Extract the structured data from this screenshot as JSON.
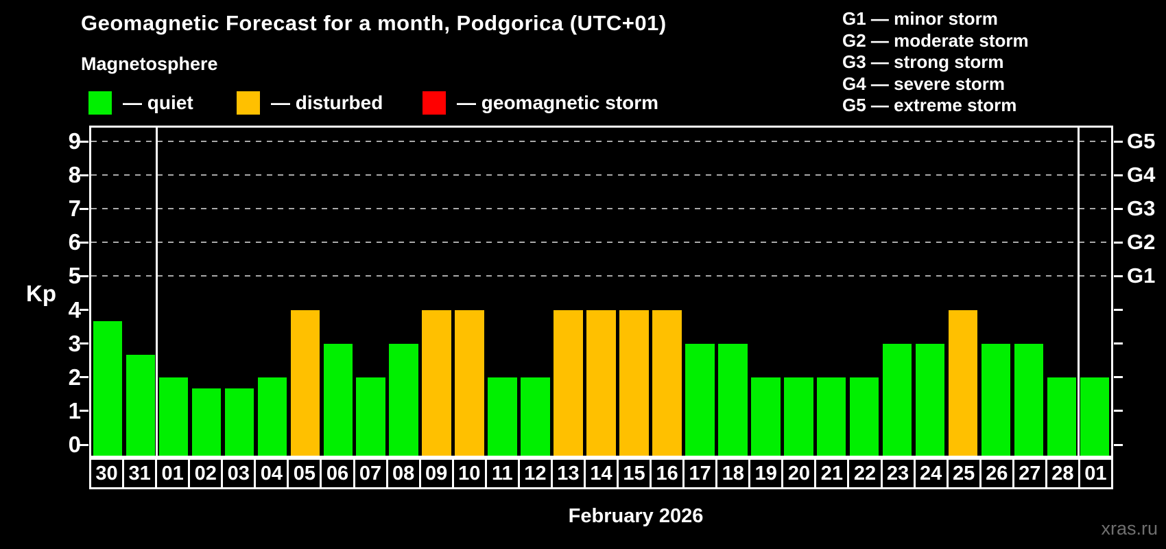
{
  "title": "Geomagnetic Forecast for a month, Podgorica (UTC+01)",
  "subtitle": "Magnetosphere",
  "legend": {
    "items": [
      {
        "name": "quiet",
        "label": "— quiet",
        "color": "#00f000"
      },
      {
        "name": "disturbed",
        "label": "— disturbed",
        "color": "#ffc000"
      },
      {
        "name": "storm",
        "label": "— geomagnetic storm",
        "color": "#ff0000"
      }
    ]
  },
  "g_legend": [
    "G1 — minor storm",
    "G2 — moderate storm",
    "G3 — strong storm",
    "G4 — severe storm",
    "G5 — extreme storm"
  ],
  "chart_data": {
    "type": "bar",
    "title": "Geomagnetic Forecast for a month, Podgorica (UTC+01)",
    "xlabel": "February 2026",
    "ylabel": "Kp",
    "ylim": [
      0,
      9
    ],
    "yticks": [
      0,
      1,
      2,
      3,
      4,
      5,
      6,
      7,
      8,
      9
    ],
    "grid_levels": [
      5,
      6,
      7,
      8,
      9
    ],
    "grid_style": "dashed",
    "right_axis_labels": [
      {
        "label": "G1",
        "level": 5
      },
      {
        "label": "G2",
        "level": 6
      },
      {
        "label": "G3",
        "level": 7
      },
      {
        "label": "G4",
        "level": 8
      },
      {
        "label": "G5",
        "level": 9
      }
    ],
    "categories": [
      "30",
      "31",
      "01",
      "02",
      "03",
      "04",
      "05",
      "06",
      "07",
      "08",
      "09",
      "10",
      "11",
      "12",
      "13",
      "14",
      "15",
      "16",
      "17",
      "18",
      "19",
      "20",
      "21",
      "22",
      "23",
      "24",
      "25",
      "26",
      "27",
      "28",
      "01"
    ],
    "values": [
      3.67,
      2.67,
      2,
      1.67,
      1.67,
      2,
      4,
      3,
      2,
      3,
      4,
      4,
      2,
      2,
      4,
      4,
      4,
      4,
      3,
      3,
      2,
      2,
      2,
      2,
      3,
      3,
      4,
      3,
      3,
      2,
      2
    ],
    "statuses": [
      "quiet",
      "quiet",
      "quiet",
      "quiet",
      "quiet",
      "quiet",
      "disturbed",
      "quiet",
      "quiet",
      "quiet",
      "disturbed",
      "disturbed",
      "quiet",
      "quiet",
      "disturbed",
      "disturbed",
      "disturbed",
      "disturbed",
      "quiet",
      "quiet",
      "quiet",
      "quiet",
      "quiet",
      "quiet",
      "quiet",
      "quiet",
      "disturbed",
      "quiet",
      "quiet",
      "quiet",
      "quiet"
    ],
    "status_colors": {
      "quiet": "#00f000",
      "disturbed": "#ffc000",
      "storm": "#ff0000"
    },
    "month_separators_before_index": [
      2,
      30
    ],
    "legend_position": "top-left",
    "grid_color": "#aaaaaa"
  },
  "footer": {
    "watermark": "xras.ru"
  }
}
